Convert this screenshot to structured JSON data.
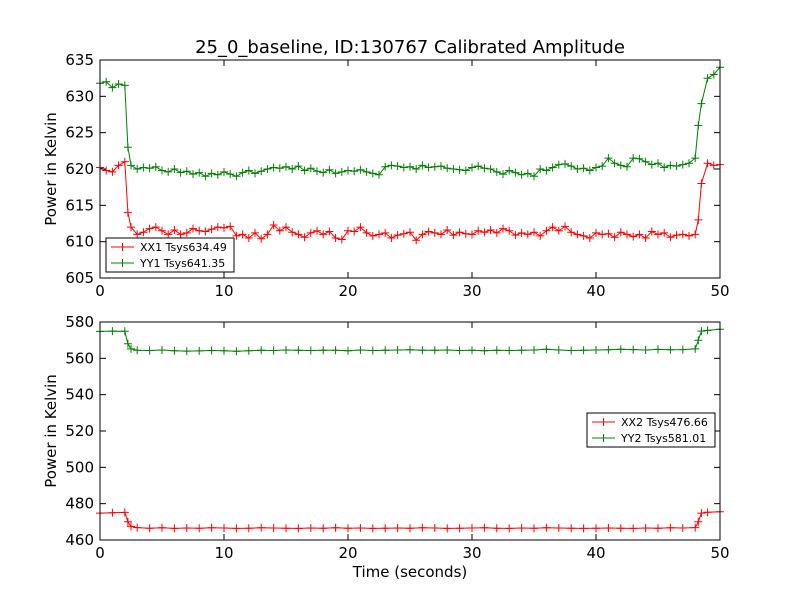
{
  "chart_data": [
    {
      "type": "line",
      "title": "25_0_baseline, ID:130767 Calibrated Amplitude",
      "xlabel": "",
      "ylabel": "Power in Kelvin",
      "xlim": [
        0,
        50
      ],
      "ylim": [
        605,
        635
      ],
      "xticks": [
        0,
        10,
        20,
        30,
        40,
        50
      ],
      "yticks": [
        605,
        610,
        615,
        620,
        625,
        630,
        635
      ],
      "grid": false,
      "legend_position": "lower-left",
      "series": [
        {
          "name": "XX1 Tsys634.49",
          "color": "#ff0000",
          "x": [
            0,
            0.5,
            1,
            1.5,
            2,
            2.25,
            2.5,
            3,
            3.5,
            4,
            4.5,
            5,
            5.5,
            6,
            6.5,
            7,
            7.5,
            8,
            8.5,
            9,
            9.5,
            10,
            10.5,
            11,
            11.5,
            12,
            12.5,
            13,
            13.5,
            14,
            14.5,
            15,
            15.5,
            16,
            16.5,
            17,
            17.5,
            18,
            18.5,
            19,
            19.5,
            20,
            20.5,
            21,
            21.5,
            22,
            22.5,
            23,
            23.5,
            24,
            24.5,
            25,
            25.5,
            26,
            26.5,
            27,
            27.5,
            28,
            28.5,
            29,
            29.5,
            30,
            30.5,
            31,
            31.5,
            32,
            32.5,
            33,
            33.5,
            34,
            34.5,
            35,
            35.5,
            36,
            36.5,
            37,
            37.5,
            38,
            38.5,
            39,
            39.5,
            40,
            40.5,
            41,
            41.5,
            42,
            42.5,
            43,
            43.5,
            44,
            44.5,
            45,
            45.5,
            46,
            46.5,
            47,
            47.5,
            48,
            48.25,
            48.5,
            49,
            49.5,
            50
          ],
          "y": [
            620.2,
            619.8,
            619.6,
            620.5,
            621.0,
            614.0,
            612.0,
            611.0,
            611.3,
            611.8,
            612.0,
            611.5,
            611.0,
            611.6,
            611.0,
            611.2,
            611.8,
            611.5,
            611.4,
            611.7,
            612.0,
            611.9,
            612.1,
            610.8,
            611.0,
            610.5,
            611.2,
            610.4,
            611.0,
            612.3,
            611.5,
            612.0,
            611.3,
            611.0,
            610.6,
            611.2,
            611.5,
            611.0,
            611.4,
            610.5,
            610.3,
            611.5,
            611.4,
            612.0,
            611.2,
            610.8,
            611.0,
            611.2,
            610.5,
            610.9,
            611.1,
            611.3,
            610.2,
            611.0,
            611.4,
            611.2,
            611.0,
            611.6,
            610.9,
            611.3,
            611.1,
            611.0,
            611.5,
            611.3,
            611.6,
            611.2,
            611.8,
            611.5,
            610.9,
            611.2,
            611.0,
            611.3,
            610.8,
            611.5,
            612.0,
            611.5,
            612.1,
            611.3,
            611.0,
            610.8,
            610.5,
            611.2,
            611.0,
            611.1,
            610.6,
            611.3,
            611.0,
            610.7,
            611.0,
            610.5,
            611.4,
            611.0,
            611.2,
            610.6,
            610.9,
            611.0,
            610.8,
            611.0,
            613.0,
            618.0,
            620.8,
            620.5,
            620.6
          ]
        },
        {
          "name": "YY1 Tsys641.35",
          "color": "#008000",
          "x": [
            0,
            0.5,
            1,
            1.5,
            2,
            2.25,
            2.5,
            3,
            3.5,
            4,
            4.5,
            5,
            5.5,
            6,
            6.5,
            7,
            7.5,
            8,
            8.5,
            9,
            9.5,
            10,
            10.5,
            11,
            11.5,
            12,
            12.5,
            13,
            13.5,
            14,
            14.5,
            15,
            15.5,
            16,
            16.5,
            17,
            17.5,
            18,
            18.5,
            19,
            19.5,
            20,
            20.5,
            21,
            21.5,
            22,
            22.5,
            23,
            23.5,
            24,
            24.5,
            25,
            25.5,
            26,
            26.5,
            27,
            27.5,
            28,
            28.5,
            29,
            29.5,
            30,
            30.5,
            31,
            31.5,
            32,
            32.5,
            33,
            33.5,
            34,
            34.5,
            35,
            35.5,
            36,
            36.5,
            37,
            37.5,
            38,
            38.5,
            39,
            39.5,
            40,
            40.5,
            41,
            41.5,
            42,
            42.5,
            43,
            43.5,
            44,
            44.5,
            45,
            45.5,
            46,
            46.5,
            47,
            47.5,
            48,
            48.25,
            48.5,
            49,
            49.5,
            50
          ],
          "y": [
            631.8,
            632.0,
            631.2,
            631.7,
            631.5,
            623.0,
            620.5,
            620.0,
            620.2,
            620.1,
            620.3,
            619.8,
            619.6,
            620.0,
            619.5,
            619.7,
            619.3,
            619.5,
            619.0,
            619.4,
            619.2,
            619.6,
            619.3,
            619.0,
            619.5,
            619.8,
            619.4,
            619.7,
            620.0,
            620.2,
            620.1,
            620.3,
            620.0,
            620.4,
            619.8,
            620.1,
            619.7,
            619.5,
            619.9,
            619.4,
            619.6,
            619.8,
            619.7,
            619.9,
            619.6,
            619.4,
            619.2,
            620.3,
            620.5,
            620.4,
            620.2,
            620.3,
            620.0,
            620.5,
            620.2,
            620.3,
            620.4,
            620.1,
            620.0,
            619.9,
            619.8,
            620.2,
            620.4,
            620.1,
            620.0,
            619.6,
            619.3,
            619.8,
            619.5,
            619.2,
            619.4,
            619.0,
            620.0,
            619.8,
            620.2,
            620.6,
            620.7,
            620.4,
            620.0,
            620.1,
            619.8,
            620.2,
            620.4,
            621.5,
            620.8,
            620.5,
            620.3,
            621.5,
            621.4,
            621.0,
            620.6,
            620.8,
            620.2,
            620.5,
            620.4,
            620.6,
            620.8,
            621.5,
            626.0,
            629.0,
            632.5,
            633.0,
            634.0
          ]
        }
      ]
    },
    {
      "type": "line",
      "title": "",
      "xlabel": "Time (seconds)",
      "ylabel": "Power in Kelvin",
      "xlim": [
        0,
        50
      ],
      "ylim": [
        460,
        580
      ],
      "xticks": [
        0,
        10,
        20,
        30,
        40,
        50
      ],
      "yticks": [
        460,
        480,
        500,
        520,
        540,
        560,
        580
      ],
      "grid": false,
      "legend_position": "center-right",
      "series": [
        {
          "name": "XX2 Tsys476.66",
          "color": "#ff0000",
          "x": [
            0,
            1,
            2,
            2.25,
            2.5,
            3,
            4,
            5,
            6,
            7,
            8,
            9,
            10,
            11,
            12,
            13,
            14,
            15,
            16,
            17,
            18,
            19,
            20,
            21,
            22,
            23,
            24,
            25,
            26,
            27,
            28,
            29,
            30,
            31,
            32,
            33,
            34,
            35,
            36,
            37,
            38,
            39,
            40,
            41,
            42,
            43,
            44,
            45,
            46,
            47,
            48,
            48.25,
            48.5,
            49,
            50
          ],
          "y": [
            474.8,
            475.0,
            475.2,
            470.0,
            467.5,
            466.8,
            466.5,
            466.7,
            466.4,
            466.6,
            466.5,
            466.7,
            466.6,
            466.4,
            466.5,
            466.7,
            466.6,
            466.5,
            466.4,
            466.6,
            466.5,
            466.7,
            466.5,
            466.6,
            466.4,
            466.5,
            466.6,
            466.5,
            466.7,
            466.6,
            466.4,
            466.5,
            466.6,
            466.7,
            466.5,
            466.4,
            466.6,
            466.5,
            466.7,
            466.6,
            466.5,
            466.4,
            466.5,
            466.6,
            466.5,
            466.4,
            466.6,
            466.5,
            466.7,
            466.6,
            466.8,
            470.0,
            474.8,
            475.3,
            475.6
          ]
        },
        {
          "name": "YY2 Tsys581.01",
          "color": "#008000",
          "x": [
            0,
            1,
            2,
            2.25,
            2.5,
            3,
            4,
            5,
            6,
            7,
            8,
            9,
            10,
            11,
            12,
            13,
            14,
            15,
            16,
            17,
            18,
            19,
            20,
            21,
            22,
            23,
            24,
            25,
            26,
            27,
            28,
            29,
            30,
            31,
            32,
            33,
            34,
            35,
            36,
            37,
            38,
            39,
            40,
            41,
            42,
            43,
            44,
            45,
            46,
            47,
            48,
            48.25,
            48.5,
            49,
            50
          ],
          "y": [
            574.8,
            575.0,
            574.9,
            568.0,
            565.2,
            564.5,
            564.3,
            564.6,
            564.2,
            564.0,
            564.1,
            564.3,
            564.2,
            563.9,
            564.2,
            564.4,
            564.3,
            564.6,
            564.4,
            564.3,
            564.5,
            564.4,
            564.2,
            564.6,
            564.3,
            564.4,
            564.6,
            564.7,
            564.5,
            564.4,
            564.6,
            564.3,
            564.5,
            564.2,
            564.4,
            564.3,
            564.5,
            564.6,
            565.0,
            564.6,
            564.3,
            564.4,
            564.6,
            564.7,
            565.0,
            564.8,
            564.6,
            564.9,
            564.7,
            564.8,
            565.2,
            570.0,
            575.0,
            575.4,
            576.0
          ]
        }
      ]
    }
  ]
}
